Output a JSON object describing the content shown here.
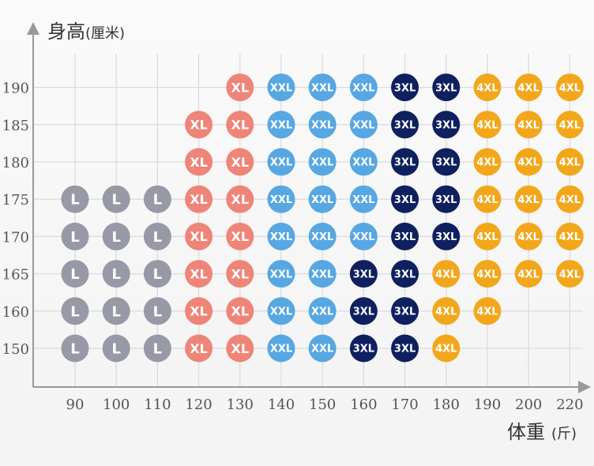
{
  "chart_data": {
    "type": "scatter",
    "title": "",
    "ylabel_main": "身高",
    "ylabel_unit": "(厘米)",
    "xlabel_main": "体重",
    "xlabel_unit": "(斤)",
    "x_ticks": [
      90,
      100,
      110,
      120,
      130,
      140,
      150,
      160,
      170,
      180,
      190,
      200,
      220
    ],
    "y_ticks": [
      150,
      160,
      165,
      170,
      175,
      180,
      185,
      190
    ],
    "grid": true,
    "size_colors": {
      "L": "#9899a6",
      "XL": "#ef8478",
      "XXL": "#57a7e3",
      "3XL": "#0f2060",
      "4XL": "#f2a71b"
    },
    "points": [
      {
        "x": 90,
        "y": 150,
        "size": "L"
      },
      {
        "x": 90,
        "y": 160,
        "size": "L"
      },
      {
        "x": 90,
        "y": 165,
        "size": "L"
      },
      {
        "x": 90,
        "y": 170,
        "size": "L"
      },
      {
        "x": 90,
        "y": 175,
        "size": "L"
      },
      {
        "x": 100,
        "y": 150,
        "size": "L"
      },
      {
        "x": 100,
        "y": 160,
        "size": "L"
      },
      {
        "x": 100,
        "y": 165,
        "size": "L"
      },
      {
        "x": 100,
        "y": 170,
        "size": "L"
      },
      {
        "x": 100,
        "y": 175,
        "size": "L"
      },
      {
        "x": 110,
        "y": 150,
        "size": "L"
      },
      {
        "x": 110,
        "y": 160,
        "size": "L"
      },
      {
        "x": 110,
        "y": 165,
        "size": "L"
      },
      {
        "x": 110,
        "y": 170,
        "size": "L"
      },
      {
        "x": 110,
        "y": 175,
        "size": "L"
      },
      {
        "x": 120,
        "y": 150,
        "size": "XL"
      },
      {
        "x": 120,
        "y": 160,
        "size": "XL"
      },
      {
        "x": 120,
        "y": 165,
        "size": "XL"
      },
      {
        "x": 120,
        "y": 170,
        "size": "XL"
      },
      {
        "x": 120,
        "y": 175,
        "size": "XL"
      },
      {
        "x": 120,
        "y": 180,
        "size": "XL"
      },
      {
        "x": 120,
        "y": 185,
        "size": "XL"
      },
      {
        "x": 130,
        "y": 150,
        "size": "XL"
      },
      {
        "x": 130,
        "y": 160,
        "size": "XL"
      },
      {
        "x": 130,
        "y": 165,
        "size": "XL"
      },
      {
        "x": 130,
        "y": 170,
        "size": "XL"
      },
      {
        "x": 130,
        "y": 175,
        "size": "XL"
      },
      {
        "x": 130,
        "y": 180,
        "size": "XL"
      },
      {
        "x": 130,
        "y": 185,
        "size": "XL"
      },
      {
        "x": 130,
        "y": 190,
        "size": "XL"
      },
      {
        "x": 140,
        "y": 150,
        "size": "XXL"
      },
      {
        "x": 140,
        "y": 160,
        "size": "XXL"
      },
      {
        "x": 140,
        "y": 165,
        "size": "XXL"
      },
      {
        "x": 140,
        "y": 170,
        "size": "XXL"
      },
      {
        "x": 140,
        "y": 175,
        "size": "XXL"
      },
      {
        "x": 140,
        "y": 180,
        "size": "XXL"
      },
      {
        "x": 140,
        "y": 185,
        "size": "XXL"
      },
      {
        "x": 140,
        "y": 190,
        "size": "XXL"
      },
      {
        "x": 150,
        "y": 150,
        "size": "XXL"
      },
      {
        "x": 150,
        "y": 160,
        "size": "XXL"
      },
      {
        "x": 150,
        "y": 165,
        "size": "XXL"
      },
      {
        "x": 150,
        "y": 170,
        "size": "XXL"
      },
      {
        "x": 150,
        "y": 175,
        "size": "XXL"
      },
      {
        "x": 150,
        "y": 180,
        "size": "XXL"
      },
      {
        "x": 150,
        "y": 185,
        "size": "XXL"
      },
      {
        "x": 150,
        "y": 190,
        "size": "XXL"
      },
      {
        "x": 160,
        "y": 150,
        "size": "3XL"
      },
      {
        "x": 160,
        "y": 160,
        "size": "3XL"
      },
      {
        "x": 160,
        "y": 165,
        "size": "3XL"
      },
      {
        "x": 160,
        "y": 170,
        "size": "XXL"
      },
      {
        "x": 160,
        "y": 175,
        "size": "XXL"
      },
      {
        "x": 160,
        "y": 180,
        "size": "XXL"
      },
      {
        "x": 160,
        "y": 185,
        "size": "XXL"
      },
      {
        "x": 160,
        "y": 190,
        "size": "XXL"
      },
      {
        "x": 170,
        "y": 150,
        "size": "3XL"
      },
      {
        "x": 170,
        "y": 160,
        "size": "3XL"
      },
      {
        "x": 170,
        "y": 165,
        "size": "3XL"
      },
      {
        "x": 170,
        "y": 170,
        "size": "3XL"
      },
      {
        "x": 170,
        "y": 175,
        "size": "3XL"
      },
      {
        "x": 170,
        "y": 180,
        "size": "3XL"
      },
      {
        "x": 170,
        "y": 185,
        "size": "3XL"
      },
      {
        "x": 170,
        "y": 190,
        "size": "3XL"
      },
      {
        "x": 180,
        "y": 150,
        "size": "4XL"
      },
      {
        "x": 180,
        "y": 160,
        "size": "4XL"
      },
      {
        "x": 180,
        "y": 165,
        "size": "4XL"
      },
      {
        "x": 180,
        "y": 170,
        "size": "3XL"
      },
      {
        "x": 180,
        "y": 175,
        "size": "3XL"
      },
      {
        "x": 180,
        "y": 180,
        "size": "3XL"
      },
      {
        "x": 180,
        "y": 185,
        "size": "3XL"
      },
      {
        "x": 180,
        "y": 190,
        "size": "3XL"
      },
      {
        "x": 190,
        "y": 160,
        "size": "4XL"
      },
      {
        "x": 190,
        "y": 165,
        "size": "4XL"
      },
      {
        "x": 190,
        "y": 170,
        "size": "4XL"
      },
      {
        "x": 190,
        "y": 175,
        "size": "4XL"
      },
      {
        "x": 190,
        "y": 180,
        "size": "4XL"
      },
      {
        "x": 190,
        "y": 185,
        "size": "4XL"
      },
      {
        "x": 190,
        "y": 190,
        "size": "4XL"
      },
      {
        "x": 200,
        "y": 165,
        "size": "4XL"
      },
      {
        "x": 200,
        "y": 170,
        "size": "4XL"
      },
      {
        "x": 200,
        "y": 175,
        "size": "4XL"
      },
      {
        "x": 200,
        "y": 180,
        "size": "4XL"
      },
      {
        "x": 200,
        "y": 185,
        "size": "4XL"
      },
      {
        "x": 200,
        "y": 190,
        "size": "4XL"
      },
      {
        "x": 220,
        "y": 165,
        "size": "4XL"
      },
      {
        "x": 220,
        "y": 170,
        "size": "4XL"
      },
      {
        "x": 220,
        "y": 175,
        "size": "4XL"
      },
      {
        "x": 220,
        "y": 180,
        "size": "4XL"
      },
      {
        "x": 220,
        "y": 185,
        "size": "4XL"
      },
      {
        "x": 220,
        "y": 190,
        "size": "4XL"
      }
    ]
  }
}
